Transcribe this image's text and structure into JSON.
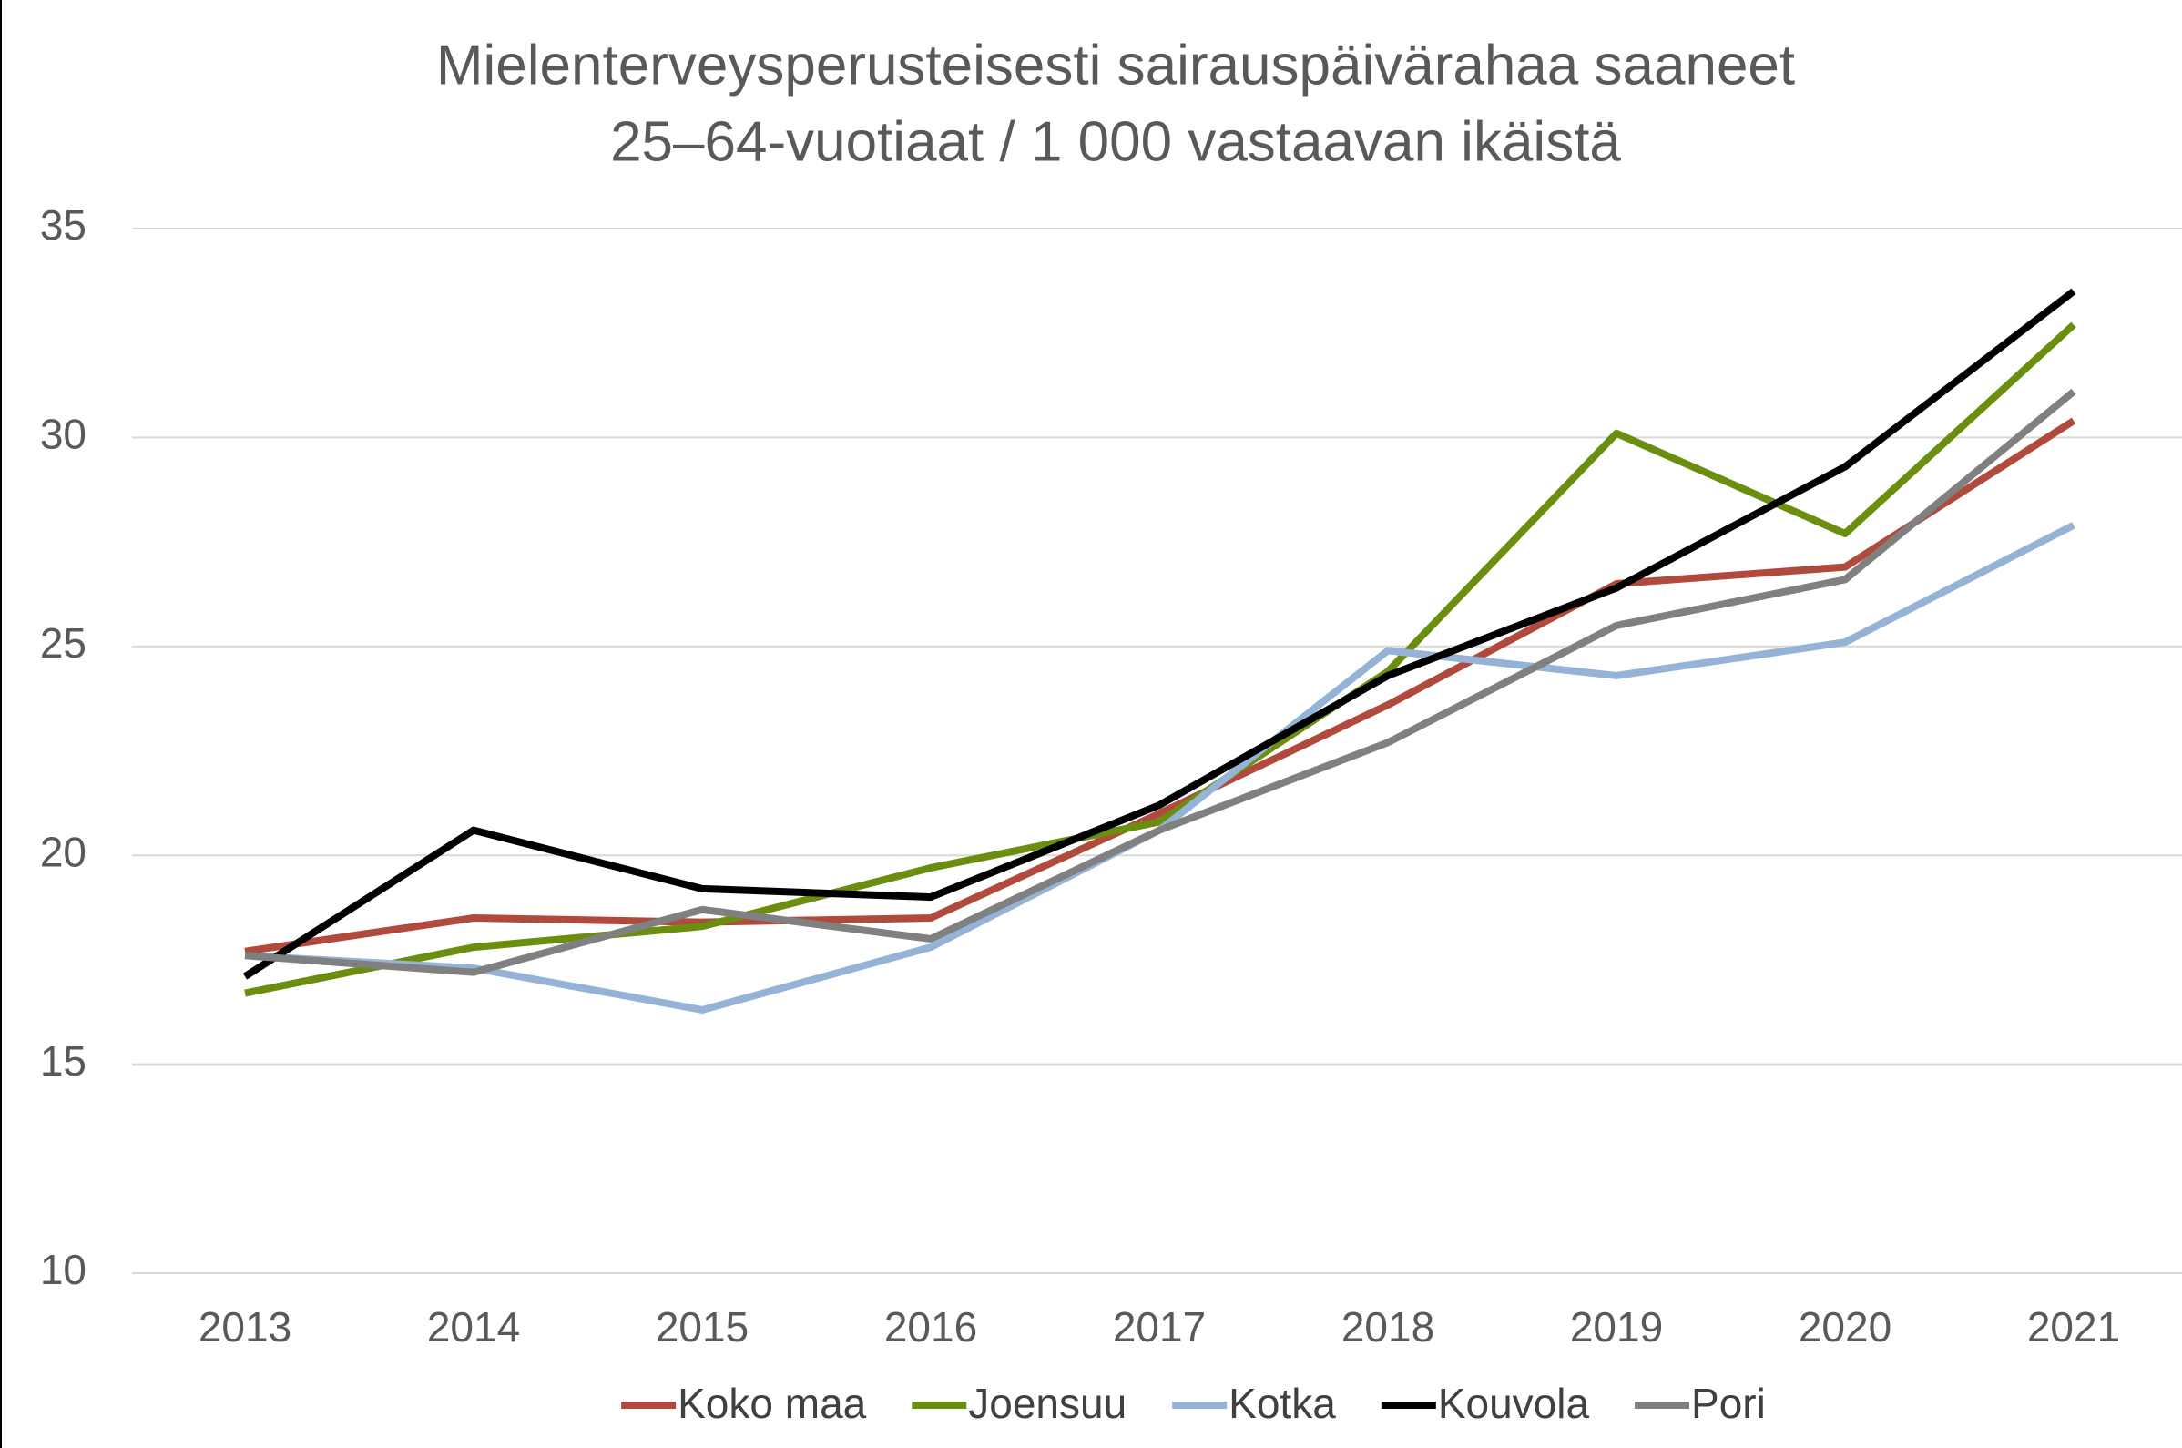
{
  "chart_data": {
    "type": "line",
    "title": [
      "Mielenterveysperusteisesti sairauspäivärahaa saaneet",
      "25–64-vuotiaat / 1 000 vastaavan ikäistä"
    ],
    "categories": [
      "2013",
      "2014",
      "2015",
      "2016",
      "2017",
      "2018",
      "2019",
      "2020",
      "2021"
    ],
    "series": [
      {
        "name": "Koko maa",
        "color": "#b04a3c",
        "values": [
          17.7,
          18.5,
          18.4,
          18.5,
          21.0,
          23.6,
          26.5,
          26.9,
          30.4
        ]
      },
      {
        "name": "Joensuu",
        "color": "#6b8e0f",
        "values": [
          16.7,
          17.8,
          18.3,
          19.7,
          20.8,
          24.4,
          30.1,
          27.7,
          32.7
        ]
      },
      {
        "name": "Kotka",
        "color": "#95b3d7",
        "values": [
          17.6,
          17.3,
          16.3,
          17.8,
          20.6,
          24.9,
          24.3,
          25.1,
          27.9
        ]
      },
      {
        "name": "Kouvola",
        "color": "#000000",
        "values": [
          17.1,
          20.6,
          19.2,
          19.0,
          21.2,
          24.3,
          26.4,
          29.3,
          33.5
        ]
      },
      {
        "name": "Pori",
        "color": "#808080",
        "values": [
          17.6,
          17.2,
          18.7,
          18.0,
          20.6,
          22.7,
          25.5,
          26.6,
          31.1
        ]
      }
    ],
    "ylim": [
      10,
      35
    ],
    "yticks": [
      10,
      15,
      20,
      25,
      30,
      35
    ],
    "grid": true,
    "legend": "bottom"
  }
}
